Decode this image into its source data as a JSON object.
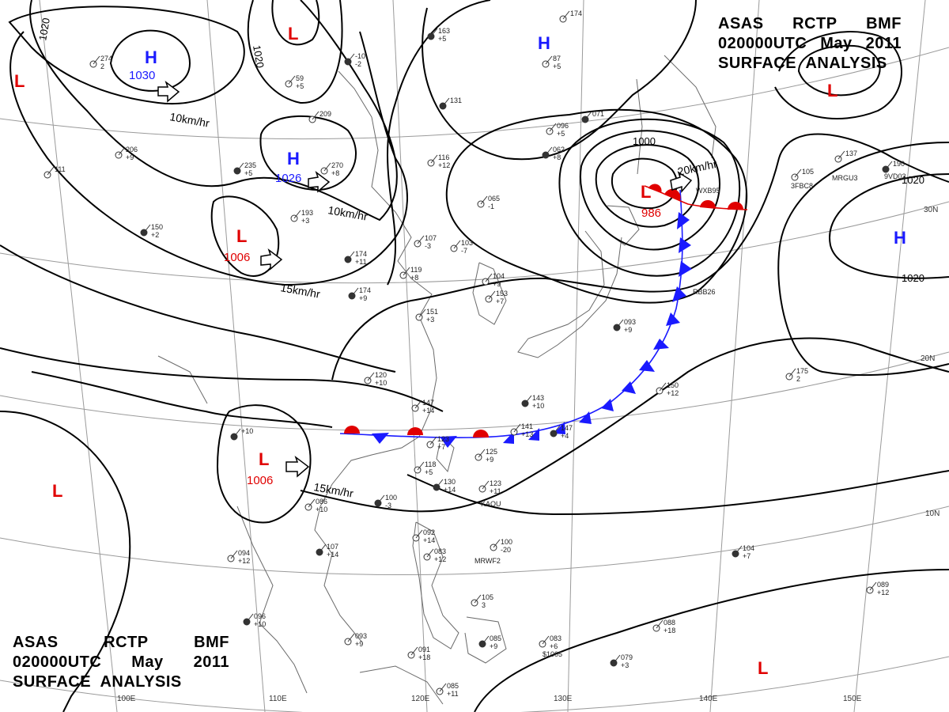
{
  "header": {
    "line1": [
      "ASAS",
      "RCTP",
      "BMF"
    ],
    "line2": [
      "020000UTC",
      "May",
      "2011"
    ],
    "line3": "SURFACE  ANALYSIS"
  },
  "pressure_centers": [
    {
      "type": "H",
      "value": "1030"
    },
    {
      "type": "H",
      "value": "1026"
    },
    {
      "type": "L",
      "value": "1006"
    },
    {
      "type": "L",
      "value": "1006"
    },
    {
      "type": "L",
      "value": "986"
    },
    {
      "type": "H",
      "value": ""
    },
    {
      "type": "H",
      "value": ""
    },
    {
      "type": "L",
      "value": ""
    },
    {
      "type": "L",
      "value": ""
    },
    {
      "type": "L",
      "value": ""
    },
    {
      "type": "L",
      "value": ""
    },
    {
      "type": "L",
      "value": ""
    }
  ],
  "isobar_labels": [
    "1020",
    "1020",
    "1000",
    "1020",
    "1020"
  ],
  "motion_labels": [
    "10km/hr",
    "10km/hr",
    "15km/hr",
    "15km/hr",
    "20km/hr"
  ],
  "longitude_labels": [
    "100E",
    "110E",
    "120E",
    "130E",
    "140E",
    "150E"
  ],
  "latitude_labels": [
    "30N",
    "20N",
    "10N"
  ],
  "stations": [
    {
      "line1": "163",
      "line2": "+5"
    },
    {
      "line1": "174",
      "line2": ""
    },
    {
      "line1": "274",
      "line2": "2"
    },
    {
      "line1": "-10",
      "line2": "-2"
    },
    {
      "line1": "59",
      "line2": "+5"
    },
    {
      "line1": "87",
      "line2": "+5"
    },
    {
      "line1": "131",
      "line2": ""
    },
    {
      "line1": "209",
      "line2": ""
    },
    {
      "line1": "096",
      "line2": "+5"
    },
    {
      "line1": "071",
      "line2": ""
    },
    {
      "line1": "206",
      "line2": "+9"
    },
    {
      "line1": "111",
      "line2": ""
    },
    {
      "line1": "235",
      "line2": "+5"
    },
    {
      "line1": "270",
      "line2": "+8"
    },
    {
      "line1": "116",
      "line2": "+12"
    },
    {
      "line1": "062",
      "line2": "+8"
    },
    {
      "line1": "105",
      "line2": ""
    },
    {
      "line1": "137",
      "line2": ""
    },
    {
      "line1": "190",
      "line2": ""
    },
    {
      "line1": "065",
      "line2": "-1"
    },
    {
      "line1": "193",
      "line2": "+3"
    },
    {
      "line1": "150",
      "line2": "+2"
    },
    {
      "line1": "107",
      "line2": "-3"
    },
    {
      "line1": "103",
      "line2": "-7"
    },
    {
      "line1": "174",
      "line2": "+11"
    },
    {
      "line1": "119",
      "line2": "+8"
    },
    {
      "line1": "104",
      "line2": "+9"
    },
    {
      "line1": "174",
      "line2": "+9"
    },
    {
      "line1": "153",
      "line2": "+7"
    },
    {
      "line1": "151",
      "line2": "+3"
    },
    {
      "line1": "093",
      "line2": "+9"
    },
    {
      "line1": "120",
      "line2": "+10"
    },
    {
      "line1": "147",
      "line2": "+14"
    },
    {
      "line1": "143",
      "line2": "+10"
    },
    {
      "line1": "150",
      "line2": "+12"
    },
    {
      "line1": "175",
      "line2": "2"
    },
    {
      "line1": "+10",
      "line2": ""
    },
    {
      "line1": "123",
      "line2": "+7"
    },
    {
      "line1": "141",
      "line2": "+13"
    },
    {
      "line1": "147",
      "line2": "+4"
    },
    {
      "line1": "125",
      "line2": "+9"
    },
    {
      "line1": "118",
      "line2": "+5"
    },
    {
      "line1": "130",
      "line2": "+14"
    },
    {
      "line1": "123",
      "line2": "+11"
    },
    {
      "line1": "086",
      "line2": "+10"
    },
    {
      "line1": "100",
      "line2": "-3"
    },
    {
      "line1": "092",
      "line2": "+14"
    },
    {
      "line1": "100",
      "line2": "-20"
    },
    {
      "line1": "107",
      "line2": "+14"
    },
    {
      "line1": "094",
      "line2": "+12"
    },
    {
      "line1": "083",
      "line2": "+12"
    },
    {
      "line1": "104",
      "line2": "+7"
    },
    {
      "line1": "105",
      "line2": "3"
    },
    {
      "line1": "089",
      "line2": "+12"
    },
    {
      "line1": "096",
      "line2": "+10"
    },
    {
      "line1": "093",
      "line2": "+9"
    },
    {
      "line1": "091",
      "line2": "+18"
    },
    {
      "line1": "085",
      "line2": "+9"
    },
    {
      "line1": "083",
      "line2": "+6"
    },
    {
      "line1": "088",
      "line2": "+18"
    },
    {
      "line1": "079",
      "line2": "+3"
    },
    {
      "line1": "085",
      "line2": "+11"
    }
  ],
  "station_ids": [
    "3FBC8",
    "MRGU3",
    "9VD03",
    "KAOU",
    "MRWF2",
    "$1005",
    "RBB26",
    "WXB95"
  ],
  "colors": {
    "high": "#1a1aff",
    "low": "#e00000",
    "isobar": "#000000",
    "grid": "#9a9a9a",
    "coast": "#666666",
    "cold_front": "#1a1aff",
    "warm_front": "#e00000"
  }
}
